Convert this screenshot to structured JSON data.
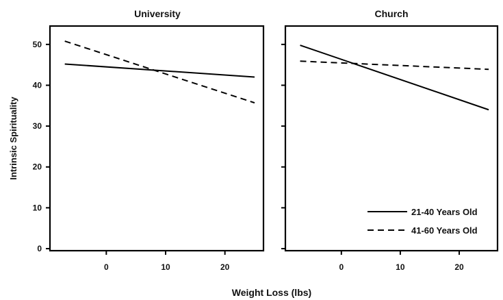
{
  "chart_data": {
    "type": "line",
    "ylabel": "Intrinsic Spirituality",
    "xlabel": "Weight Loss (lbs)",
    "xlim": [
      -9.5,
      26.5
    ],
    "ylim": [
      -0.5,
      54.5
    ],
    "x_ticks": [
      0,
      10,
      20
    ],
    "y_ticks": [
      0,
      10,
      20,
      30,
      40,
      50
    ],
    "legend_position": "bottom-right",
    "panels": [
      {
        "title": "University",
        "series": [
          {
            "name": "21-40 Years Old",
            "style": "solid",
            "x": [
              -7,
              25
            ],
            "y": [
              45.2,
              42.0
            ]
          },
          {
            "name": "41-60 Years Old",
            "style": "dashed",
            "x": [
              -7,
              25
            ],
            "y": [
              50.8,
              35.7
            ]
          }
        ]
      },
      {
        "title": "Church",
        "series": [
          {
            "name": "21-40 Years Old",
            "style": "solid",
            "x": [
              -7,
              25
            ],
            "y": [
              49.8,
              34.0
            ]
          },
          {
            "name": "41-60 Years Old",
            "style": "dashed",
            "x": [
              -7,
              25
            ],
            "y": [
              45.9,
              43.9
            ]
          }
        ]
      }
    ],
    "legend": [
      {
        "name": "21-40 Years Old",
        "style": "solid"
      },
      {
        "name": "41-60 Years Old",
        "style": "dashed"
      }
    ]
  }
}
